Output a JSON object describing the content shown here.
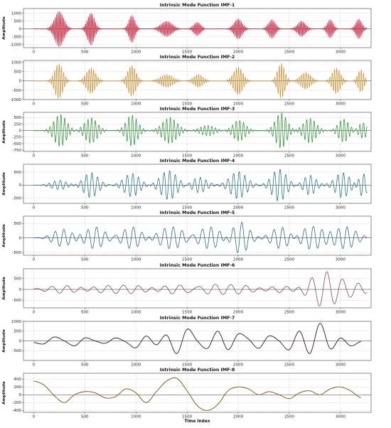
{
  "chart_data": [
    {
      "type": "line",
      "title": "Intrinsic Mode Function IMF-1",
      "xlabel": "",
      "ylabel": "Amplitude",
      "xlim": [
        -100,
        3300
      ],
      "ylim": [
        -1200,
        1300
      ],
      "xticks": [
        0,
        500,
        1000,
        1500,
        2000,
        2500,
        3000
      ],
      "yticks": [
        -1000,
        -500,
        0,
        500,
        1000
      ],
      "grid": true,
      "series": [
        {
          "color": "#c8324a",
          "style": "bursts",
          "bursts": [
            {
              "center": 250,
              "width": 45,
              "amp": 1150,
              "period": 14
            },
            {
              "center": 560,
              "width": 35,
              "amp": 1050,
              "period": 14
            },
            {
              "center": 960,
              "width": 30,
              "amp": 900,
              "period": 14
            },
            {
              "center": 1300,
              "width": 55,
              "amp": 500,
              "period": 14
            },
            {
              "center": 1600,
              "width": 35,
              "amp": 450,
              "period": 14
            },
            {
              "center": 2000,
              "width": 40,
              "amp": 650,
              "period": 14
            },
            {
              "center": 2330,
              "width": 35,
              "amp": 600,
              "period": 14
            },
            {
              "center": 2620,
              "width": 40,
              "amp": 500,
              "period": 14
            },
            {
              "center": 2900,
              "width": 30,
              "amp": 600,
              "period": 14
            },
            {
              "center": 3180,
              "width": 30,
              "amp": 650,
              "period": 14
            }
          ],
          "noise": 15
        }
      ]
    },
    {
      "type": "line",
      "title": "Intrinsic Mode Function IMF-2",
      "xlabel": "",
      "ylabel": "",
      "xlim": [
        -100,
        3300
      ],
      "ylim": [
        -1000,
        1100
      ],
      "xticks": [
        0,
        500,
        1000,
        1500,
        2000,
        2500,
        3000
      ],
      "yticks": [
        -1000,
        -500,
        0,
        500,
        1000
      ],
      "grid": true,
      "series": [
        {
          "color": "#c99338",
          "style": "bursts",
          "bursts": [
            {
              "center": 245,
              "width": 40,
              "amp": 950,
              "period": 22
            },
            {
              "center": 560,
              "width": 45,
              "amp": 700,
              "period": 22
            },
            {
              "center": 960,
              "width": 40,
              "amp": 850,
              "period": 22
            },
            {
              "center": 1300,
              "width": 60,
              "amp": 350,
              "period": 22
            },
            {
              "center": 1610,
              "width": 45,
              "amp": 350,
              "period": 22
            },
            {
              "center": 2000,
              "width": 45,
              "amp": 750,
              "period": 22
            },
            {
              "center": 2420,
              "width": 35,
              "amp": 950,
              "period": 22
            },
            {
              "center": 2660,
              "width": 50,
              "amp": 450,
              "period": 22
            },
            {
              "center": 2960,
              "width": 40,
              "amp": 700,
              "period": 22
            },
            {
              "center": 3200,
              "width": 30,
              "amp": 600,
              "period": 22
            }
          ],
          "noise": 12
        }
      ]
    },
    {
      "type": "line",
      "title": "Intrinsic Mode Function IMF-3",
      "xlabel": "",
      "ylabel": "Amplitude",
      "xlim": [
        -100,
        3300
      ],
      "ylim": [
        -800,
        700
      ],
      "xticks": [
        0,
        500,
        1000,
        1500,
        2000,
        2500,
        3000
      ],
      "yticks": [
        -750,
        -500,
        -250,
        0,
        250,
        500
      ],
      "grid": true,
      "series": [
        {
          "color": "#2f8f3a",
          "style": "bursts",
          "bursts": [
            {
              "center": 260,
              "width": 60,
              "amp": 620,
              "period": 36
            },
            {
              "center": 560,
              "width": 60,
              "amp": 500,
              "period": 36
            },
            {
              "center": 960,
              "width": 55,
              "amp": 600,
              "period": 36
            },
            {
              "center": 1330,
              "width": 70,
              "amp": 500,
              "period": 36
            },
            {
              "center": 1700,
              "width": 70,
              "amp": 200,
              "period": 36
            },
            {
              "center": 2010,
              "width": 60,
              "amp": 400,
              "period": 36
            },
            {
              "center": 2420,
              "width": 55,
              "amp": 680,
              "period": 36
            },
            {
              "center": 2700,
              "width": 60,
              "amp": 480,
              "period": 36
            },
            {
              "center": 3030,
              "width": 50,
              "amp": 450,
              "period": 36
            },
            {
              "center": 3220,
              "width": 40,
              "amp": 300,
              "period": 36
            }
          ],
          "noise": 10
        }
      ]
    },
    {
      "type": "line",
      "title": "Intrinsic Mode Function IMF-4",
      "xlabel": "",
      "ylabel": "Amplitude",
      "xlim": [
        -100,
        3300
      ],
      "ylim": [
        -700,
        800
      ],
      "xticks": [
        0,
        500,
        1000,
        1500,
        2000,
        2500,
        3000
      ],
      "yticks": [
        -500,
        0,
        500
      ],
      "grid": true,
      "series": [
        {
          "color": "#1f6a82",
          "style": "bursts",
          "bursts": [
            {
              "center": 250,
              "width": 75,
              "amp": 180,
              "period": 55
            },
            {
              "center": 560,
              "width": 70,
              "amp": 480,
              "period": 55
            },
            {
              "center": 960,
              "width": 75,
              "amp": 450,
              "period": 55
            },
            {
              "center": 1320,
              "width": 80,
              "amp": 560,
              "period": 55
            },
            {
              "center": 1620,
              "width": 70,
              "amp": 300,
              "period": 55
            },
            {
              "center": 2000,
              "width": 80,
              "amp": 520,
              "period": 55
            },
            {
              "center": 2400,
              "width": 70,
              "amp": 620,
              "period": 55
            },
            {
              "center": 2700,
              "width": 60,
              "amp": 380,
              "period": 55
            },
            {
              "center": 3020,
              "width": 70,
              "amp": 480,
              "period": 55
            },
            {
              "center": 3220,
              "width": 40,
              "amp": 450,
              "period": 55
            }
          ],
          "noise": 5
        }
      ]
    },
    {
      "type": "line",
      "title": "Intrinsic Mode Function IMF-5",
      "xlabel": "",
      "ylabel": "Amplitude",
      "xlim": [
        -100,
        3300
      ],
      "ylim": [
        -600,
        750
      ],
      "xticks": [
        0,
        500,
        1000,
        1500,
        2000,
        2500,
        3000
      ],
      "yticks": [
        -500,
        0,
        500
      ],
      "grid": true,
      "series": [
        {
          "color": "#1e5f7a",
          "style": "bursts",
          "bursts": [
            {
              "center": 280,
              "width": 90,
              "amp": 300,
              "period": 85
            },
            {
              "center": 600,
              "width": 90,
              "amp": 380,
              "period": 85
            },
            {
              "center": 960,
              "width": 90,
              "amp": 380,
              "period": 85
            },
            {
              "center": 1350,
              "width": 120,
              "amp": 380,
              "period": 85
            },
            {
              "center": 1720,
              "width": 110,
              "amp": 380,
              "period": 85
            },
            {
              "center": 2020,
              "width": 80,
              "amp": 560,
              "period": 85
            },
            {
              "center": 2420,
              "width": 90,
              "amp": 380,
              "period": 85
            },
            {
              "center": 2720,
              "width": 110,
              "amp": 400,
              "period": 85
            },
            {
              "center": 3050,
              "width": 100,
              "amp": 380,
              "period": 85
            }
          ],
          "noise": 3
        }
      ]
    },
    {
      "type": "line",
      "title": "Intrinsic Mode Function IMF-6",
      "xlabel": "",
      "ylabel": "Amplitude",
      "xlim": [
        -100,
        3300
      ],
      "ylim": [
        -850,
        950
      ],
      "xticks": [
        0,
        500,
        1000,
        1500,
        2000,
        2500,
        3000
      ],
      "yticks": [
        -500,
        0,
        500
      ],
      "grid": true,
      "series": [
        {
          "color": "#7a3c5c",
          "style": "bursts",
          "bursts": [
            {
              "center": 300,
              "width": 160,
              "amp": 180,
              "period": 150
            },
            {
              "center": 700,
              "width": 160,
              "amp": 160,
              "period": 150
            },
            {
              "center": 1000,
              "width": 140,
              "amp": 160,
              "period": 150
            },
            {
              "center": 1400,
              "width": 160,
              "amp": 220,
              "period": 150
            },
            {
              "center": 1750,
              "width": 150,
              "amp": 230,
              "period": 150
            },
            {
              "center": 2050,
              "width": 130,
              "amp": 170,
              "period": 150
            },
            {
              "center": 2450,
              "width": 160,
              "amp": 160,
              "period": 150
            },
            {
              "center": 2840,
              "width": 140,
              "amp": 820,
              "period": 150
            },
            {
              "center": 3150,
              "width": 110,
              "amp": 250,
              "period": 150
            }
          ],
          "noise": 2
        }
      ]
    },
    {
      "type": "line",
      "title": "Intrinsic Mode Function IMF-7",
      "xlabel": "",
      "ylabel": "Amplitude",
      "xlim": [
        -100,
        3300
      ],
      "ylim": [
        -1000,
        1000
      ],
      "xticks": [
        0,
        500,
        1000,
        1500,
        2000,
        2500,
        3000
      ],
      "yticks": [
        -500,
        0,
        500,
        1000
      ],
      "grid": true,
      "series": [
        {
          "color": "#3a1f2d",
          "style": "points",
          "x": [
            0,
            100,
            200,
            300,
            400,
            500,
            600,
            700,
            800,
            900,
            1000,
            1100,
            1200,
            1300,
            1400,
            1500,
            1600,
            1700,
            1800,
            1900,
            2000,
            2100,
            2200,
            2300,
            2400,
            2500,
            2600,
            2700,
            2800,
            2900,
            3000,
            3100,
            3200
          ],
          "y": [
            -80,
            -150,
            200,
            0,
            -250,
            150,
            0,
            -120,
            150,
            -50,
            -350,
            250,
            -200,
            300,
            -650,
            600,
            0,
            -380,
            500,
            -450,
            350,
            100,
            -380,
            250,
            0,
            -450,
            500,
            -650,
            900,
            -400,
            150,
            -250,
            -30
          ]
        }
      ]
    },
    {
      "type": "line",
      "title": "Intrinsic Mode Function IMF-8",
      "xlabel": "Time Index",
      "ylabel": "Amplitude",
      "xlim": [
        -100,
        3300
      ],
      "ylim": [
        -450,
        550
      ],
      "xticks": [
        0,
        500,
        1000,
        1500,
        2000,
        2500,
        3000
      ],
      "yticks": [
        -400,
        -200,
        0,
        200,
        400
      ],
      "grid": true,
      "series": [
        {
          "color": "#7a5a1a",
          "style": "points",
          "x": [
            0,
            100,
            200,
            300,
            400,
            500,
            600,
            700,
            800,
            900,
            1000,
            1100,
            1200,
            1300,
            1400,
            1500,
            1600,
            1700,
            1800,
            1900,
            2000,
            2100,
            2200,
            2300,
            2400,
            2500,
            2600,
            2700,
            2800,
            2900,
            3000,
            3100,
            3200
          ],
          "y": [
            350,
            250,
            -20,
            -200,
            0,
            80,
            50,
            -80,
            -50,
            150,
            50,
            -200,
            80,
            350,
            420,
            100,
            -280,
            -400,
            -250,
            100,
            200,
            150,
            0,
            80,
            0,
            -100,
            50,
            100,
            0,
            150,
            200,
            100,
            -80
          ]
        }
      ]
    }
  ]
}
